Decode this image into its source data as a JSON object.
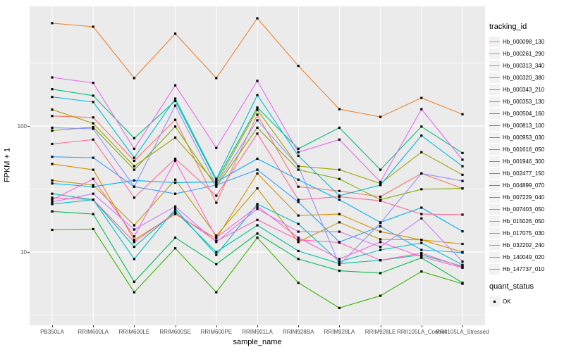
{
  "figure": {
    "panel_bg": "#EBEBEB",
    "grid_color": "#FFFFFF",
    "axis_text_color": "#4D4D4D",
    "marker_color": "#000000"
  },
  "chart_data": {
    "type": "line",
    "xlabel": "sample_name",
    "ylabel": "FPKM + 1",
    "y_scale": "log10",
    "grid": true,
    "legend_position": "right",
    "series_legend_title": "tracking_id",
    "point_legend": {
      "title": "quant_status",
      "label": "OK",
      "marker": "black-square"
    },
    "y_ticks": [
      {
        "label": "100",
        "value": 100
      },
      {
        "label": "10",
        "value": 10
      }
    ],
    "ylim_log": [
      0.41,
      2.96
    ],
    "categories": [
      "PB350LA",
      "RRIM600LA",
      "RRIM600LE",
      "RRIM600SE",
      "RRIM600PE",
      "RRIM901LA",
      "RRIM928BA",
      "RRIM928LA",
      "RRIM928LE",
      "RRII105LA_Control",
      "RRII105LA_Stressed"
    ],
    "series": [
      {
        "name": "Hb_000098_130",
        "color": "#F8766D",
        "values": [
          120,
          117,
          53,
          112,
          24.6,
          123,
          33,
          30.5,
          27.5,
          42,
          32
        ]
      },
      {
        "name": "Hb_000261_290",
        "color": "#EA8331",
        "values": [
          655,
          613,
          240,
          540,
          240,
          716,
          300,
          136,
          118,
          167,
          124
        ]
      },
      {
        "name": "Hb_000313_340",
        "color": "#D89000",
        "values": [
          50,
          45,
          12.5,
          20,
          12.8,
          42,
          19.5,
          20,
          14.5,
          12.5,
          10
        ]
      },
      {
        "name": "Hb_000320_380",
        "color": "#C09B00",
        "values": [
          37,
          34,
          16.3,
          37.5,
          13.5,
          32,
          12,
          17.2,
          12.6,
          12.5,
          11.6
        ]
      },
      {
        "name": "Hb_000343_210",
        "color": "#A3A500",
        "values": [
          135,
          105,
          48,
          81,
          35,
          134,
          48,
          45,
          35,
          62,
          41
        ]
      },
      {
        "name": "Hb_000353_130",
        "color": "#7CAE00",
        "values": [
          92,
          98,
          45,
          99,
          33,
          97,
          45,
          38,
          26,
          31.5,
          32
        ]
      },
      {
        "name": "Hb_000504_160",
        "color": "#39B600",
        "values": [
          15,
          15.2,
          4.8,
          10.7,
          4.8,
          13,
          5.7,
          3.6,
          4.5,
          7,
          5.6
        ]
      },
      {
        "name": "Hb_000813_100",
        "color": "#00BB4E",
        "values": [
          21,
          20,
          5.8,
          13,
          8,
          14,
          8.8,
          7.1,
          6.8,
          9,
          5.7
        ]
      },
      {
        "name": "Hb_000953_030",
        "color": "#00BF7D",
        "values": [
          196,
          174,
          80,
          158,
          37,
          140,
          66,
          97,
          45,
          99,
          61
        ]
      },
      {
        "name": "Hb_001616_050",
        "color": "#00C1A3",
        "values": [
          29,
          26,
          11,
          21,
          10,
          16.3,
          10.2,
          8.1,
          8.6,
          9.5,
          7.7
        ]
      },
      {
        "name": "Hb_001946_300",
        "color": "#00BFC4",
        "values": [
          24,
          26,
          8.8,
          22,
          9.5,
          24,
          16.7,
          8.4,
          10.4,
          11.8,
          7.9
        ]
      },
      {
        "name": "Hb_002477_150",
        "color": "#00BAE0",
        "values": [
          170,
          155,
          56,
          165,
          38,
          176,
          58,
          28,
          34,
          84,
          48
        ]
      },
      {
        "name": "Hb_004899_070",
        "color": "#00B0F6",
        "values": [
          35,
          33,
          37,
          35.5,
          36,
          55,
          37.5,
          26,
          17.2,
          22.5,
          14.6
        ]
      },
      {
        "name": "Hb_007229_040",
        "color": "#35A2FF",
        "values": [
          57,
          56,
          33,
          29,
          34,
          45,
          25,
          12,
          16,
          10.4,
          9.9
        ]
      },
      {
        "name": "Hb_007403_050",
        "color": "#9590FF",
        "values": [
          97,
          95,
          33,
          145,
          34,
          111,
          48,
          7.9,
          17,
          42,
          36.6
        ]
      },
      {
        "name": "Hb_015026_050",
        "color": "#C77CFF",
        "values": [
          25,
          29,
          15.1,
          23,
          12,
          22,
          14.5,
          14.5,
          11,
          18.5,
          8.4
        ]
      },
      {
        "name": "Hb_017075_030",
        "color": "#E76BF3",
        "values": [
          243,
          220,
          66,
          210,
          67,
          228,
          62,
          78,
          36,
          136,
          54
        ]
      },
      {
        "name": "Hb_032202_240",
        "color": "#FA62DB",
        "values": [
          26,
          38,
          13.3,
          53,
          13,
          23,
          13,
          8.8,
          12,
          9.2,
          7.5
        ]
      },
      {
        "name": "Hb_140049_020",
        "color": "#FF62BC",
        "values": [
          27,
          26,
          12,
          20.5,
          12.2,
          18,
          12.5,
          11.9,
          8.6,
          9.8,
          7.6
        ]
      },
      {
        "name": "Hb_147737_010",
        "color": "#FF6A98",
        "values": [
          72,
          78,
          27,
          55,
          28,
          87,
          26,
          27.5,
          25.5,
          20,
          19.8
        ]
      }
    ]
  }
}
